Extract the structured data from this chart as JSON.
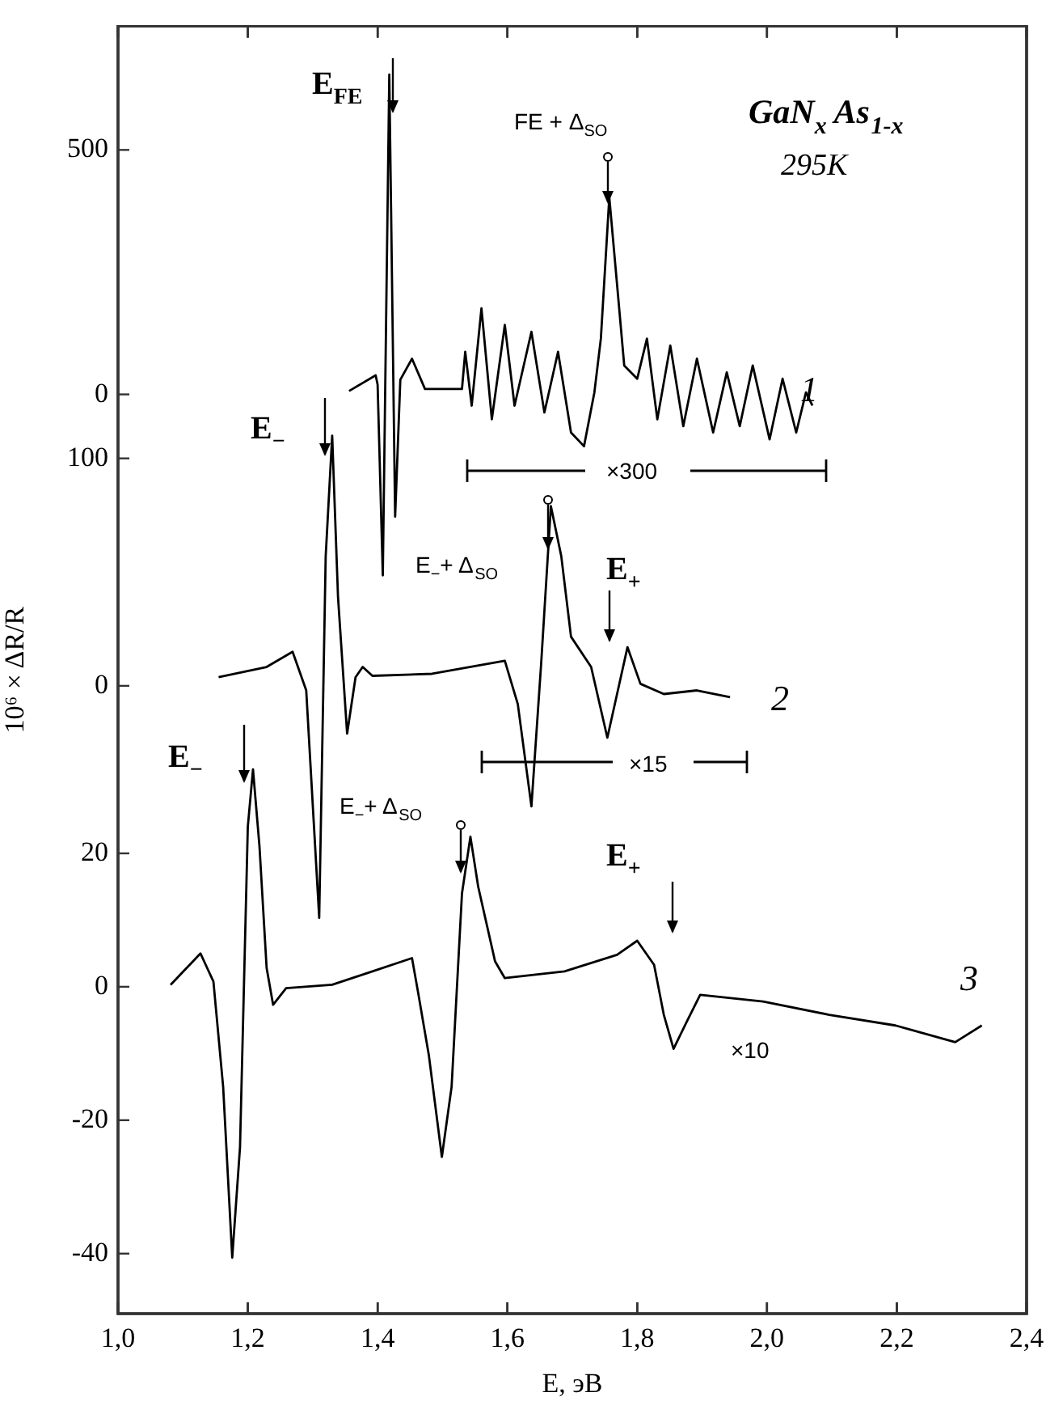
{
  "chart_data": [
    {
      "type": "line",
      "title": "GaN$_{x}$ As$_{1-x}$",
      "subtitle": "295K",
      "tick_labels": "y",
      "xlim": [
        1.0,
        2.4
      ],
      "xticks": [
        1.0,
        1.2,
        1.4,
        1.6,
        1.8,
        2.0,
        2.2,
        2.4
      ],
      "ylim": [
        -1880,
        753
      ],
      "yticks": [
        0,
        500
      ],
      "grid": false,
      "legend": false,
      "marker": "none",
      "line_style": "solid",
      "series": [
        {
          "name": "1",
          "color": "#000000",
          "x": [
            1.356,
            1.397,
            1.4,
            1.408,
            1.418,
            1.427,
            1.435,
            1.453,
            1.473,
            1.53,
            1.535,
            1.545,
            1.56,
            1.576,
            1.596,
            1.611,
            1.637,
            1.657,
            1.678,
            1.698,
            1.718,
            1.734,
            1.744,
            1.757,
            1.769,
            1.78,
            1.8,
            1.815,
            1.831,
            1.851,
            1.871,
            1.892,
            1.917,
            1.938,
            1.958,
            1.978,
            2.004,
            2.024,
            2.045,
            2.06,
            2.07
          ],
          "values": [
            7,
            39,
            20,
            -370,
            654,
            -250,
            30,
            73,
            11,
            11,
            87,
            -23,
            176,
            -51,
            142,
            -23,
            128,
            -37,
            87,
            -78,
            -106,
            4,
            114,
            403,
            224,
            59,
            32,
            114,
            -51,
            100,
            -65,
            73,
            -78,
            45,
            -65,
            59,
            -92,
            32,
            -78,
            4,
            -23
          ]
        }
      ],
      "annotations": [
        "E$_{FE}$",
        "FE + Δ$_{SO}$",
        "×300"
      ]
    },
    {
      "type": "line",
      "tick_labels": "y",
      "xlim": [
        1.0,
        2.4
      ],
      "xticks": [
        1.0,
        1.2,
        1.4,
        1.6,
        1.8,
        2.0,
        2.2,
        2.4
      ],
      "ylim": [
        -276,
        290
      ],
      "yticks": [
        0,
        100
      ],
      "grid": false,
      "legend": false,
      "marker": "none",
      "line_style": "solid",
      "series": [
        {
          "name": "2",
          "color": "#000000",
          "x": [
            1.155,
            1.229,
            1.269,
            1.29,
            1.31,
            1.32,
            1.33,
            1.339,
            1.353,
            1.366,
            1.377,
            1.392,
            1.484,
            1.596,
            1.616,
            1.637,
            1.652,
            1.667,
            1.683,
            1.698,
            1.729,
            1.754,
            1.785,
            1.805,
            1.841,
            1.892,
            1.943
          ],
          "values": [
            3.8,
            8.3,
            15,
            -2,
            -102,
            57,
            110,
            39,
            -21,
            3.8,
            8.3,
            4.4,
            5.3,
            11,
            -8,
            -53,
            9.8,
            79,
            57,
            21.6,
            8.3,
            -22.8,
            17,
            0.9,
            -3.6,
            -2,
            -5
          ]
        }
      ],
      "annotations": [
        "E$_{−}$",
        "E$_{−}$+ Δ$_{SO}$",
        "E$_{+}$",
        "×15"
      ]
    },
    {
      "type": "line",
      "xlabel": "E, эВ",
      "ylabel": "10⁶ × ΔR/R",
      "xlim": [
        1.0,
        2.4
      ],
      "xticks": [
        {
          "value": 1.0,
          "label": "1,0"
        },
        {
          "value": 1.2,
          "label": "1,2"
        },
        {
          "value": 1.4,
          "label": "1,4"
        },
        {
          "value": 1.6,
          "label": "1,6"
        },
        {
          "value": 1.8,
          "label": "1,8"
        },
        {
          "value": 2.0,
          "label": "2,0"
        },
        {
          "value": 2.2,
          "label": "2,2"
        },
        {
          "value": 2.4,
          "label": "2,4"
        }
      ],
      "ylim": [
        -49,
        144
      ],
      "yticks": [
        -40,
        -20,
        0,
        20
      ],
      "grid": false,
      "legend": false,
      "marker": "none",
      "line_style": "solid",
      "series": [
        {
          "name": "3",
          "color": "#000000",
          "x": [
            1.081,
            1.127,
            1.147,
            1.162,
            1.176,
            1.188,
            1.2,
            1.208,
            1.218,
            1.229,
            1.239,
            1.259,
            1.33,
            1.392,
            1.453,
            1.463,
            1.479,
            1.499,
            1.514,
            1.53,
            1.543,
            1.555,
            1.581,
            1.596,
            1.688,
            1.769,
            1.8,
            1.826,
            1.841,
            1.856,
            1.876,
            1.897,
            1.994,
            2.096,
            2.198,
            2.29,
            2.331
          ],
          "values": [
            0.3,
            5,
            0.8,
            -15,
            -40.6,
            -24,
            24,
            32.6,
            21,
            2.8,
            -2.7,
            -0.2,
            0.3,
            2.3,
            4.3,
            -1.2,
            -10.3,
            -25.5,
            -15,
            14,
            22.5,
            15,
            3.8,
            1.3,
            2.3,
            4.8,
            6.9,
            3.3,
            -4.2,
            -9.3,
            -5.3,
            -1.2,
            -2.2,
            -4.2,
            -5.8,
            -8.3,
            -5.8
          ]
        }
      ],
      "annotations": [
        "E$_{−}$",
        "E$_{−}$+ Δ$_{SO}$",
        "E$_{+}$",
        "×10"
      ]
    }
  ]
}
